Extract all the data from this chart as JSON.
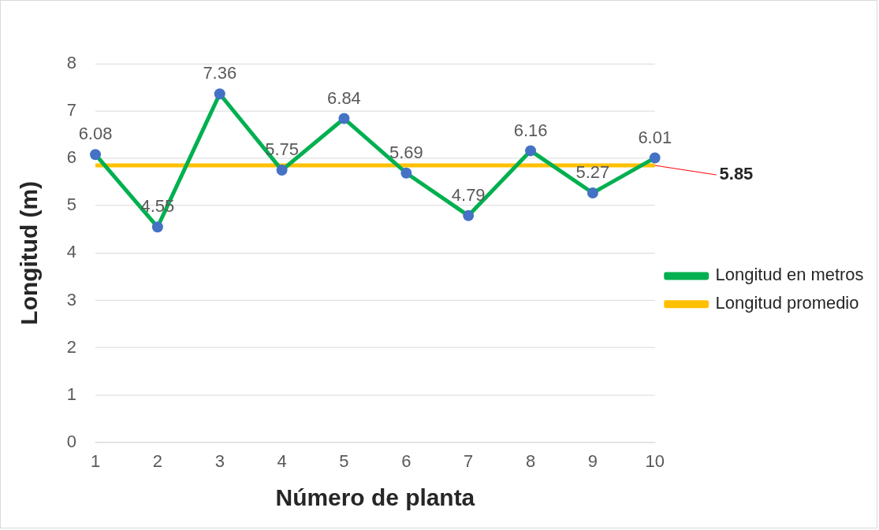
{
  "chart_data": {
    "type": "line",
    "xlabel": "Número de planta",
    "ylabel": "Longitud (m)",
    "categories": [
      "1",
      "2",
      "3",
      "4",
      "5",
      "6",
      "7",
      "8",
      "9",
      "10"
    ],
    "series": [
      {
        "name": "Longitud en metros",
        "color": "#00b050",
        "colors": [
          "#4472c4",
          "#4472c4",
          "#4472c4",
          "#4472c4",
          "#4472c4",
          "#4472c4",
          "#4472c4",
          "#4472c4",
          "#4472c4",
          "#4472c4"
        ],
        "marker": "circle",
        "values": [
          6.08,
          4.55,
          7.36,
          5.75,
          6.84,
          5.69,
          4.79,
          6.16,
          5.27,
          6.01
        ],
        "value_labels": [
          "6.08",
          "4.55",
          "7.36",
          "5.75",
          "6.84",
          "5.69",
          "4.79",
          "6.16",
          "5.27",
          "6.01"
        ]
      },
      {
        "name": "Longitud promedio",
        "color": "#ffc000",
        "marker": "none",
        "values": [
          5.85,
          5.85,
          5.85,
          5.85,
          5.85,
          5.85,
          5.85,
          5.85,
          5.85,
          5.85
        ]
      }
    ],
    "annotations": [
      {
        "text": "5.85",
        "x": "10",
        "y": 5.85
      }
    ],
    "ylim": [
      0,
      8
    ],
    "yticks": [
      0,
      1,
      2,
      3,
      4,
      5,
      6,
      7,
      8
    ],
    "grid": "y",
    "legend": "right"
  }
}
